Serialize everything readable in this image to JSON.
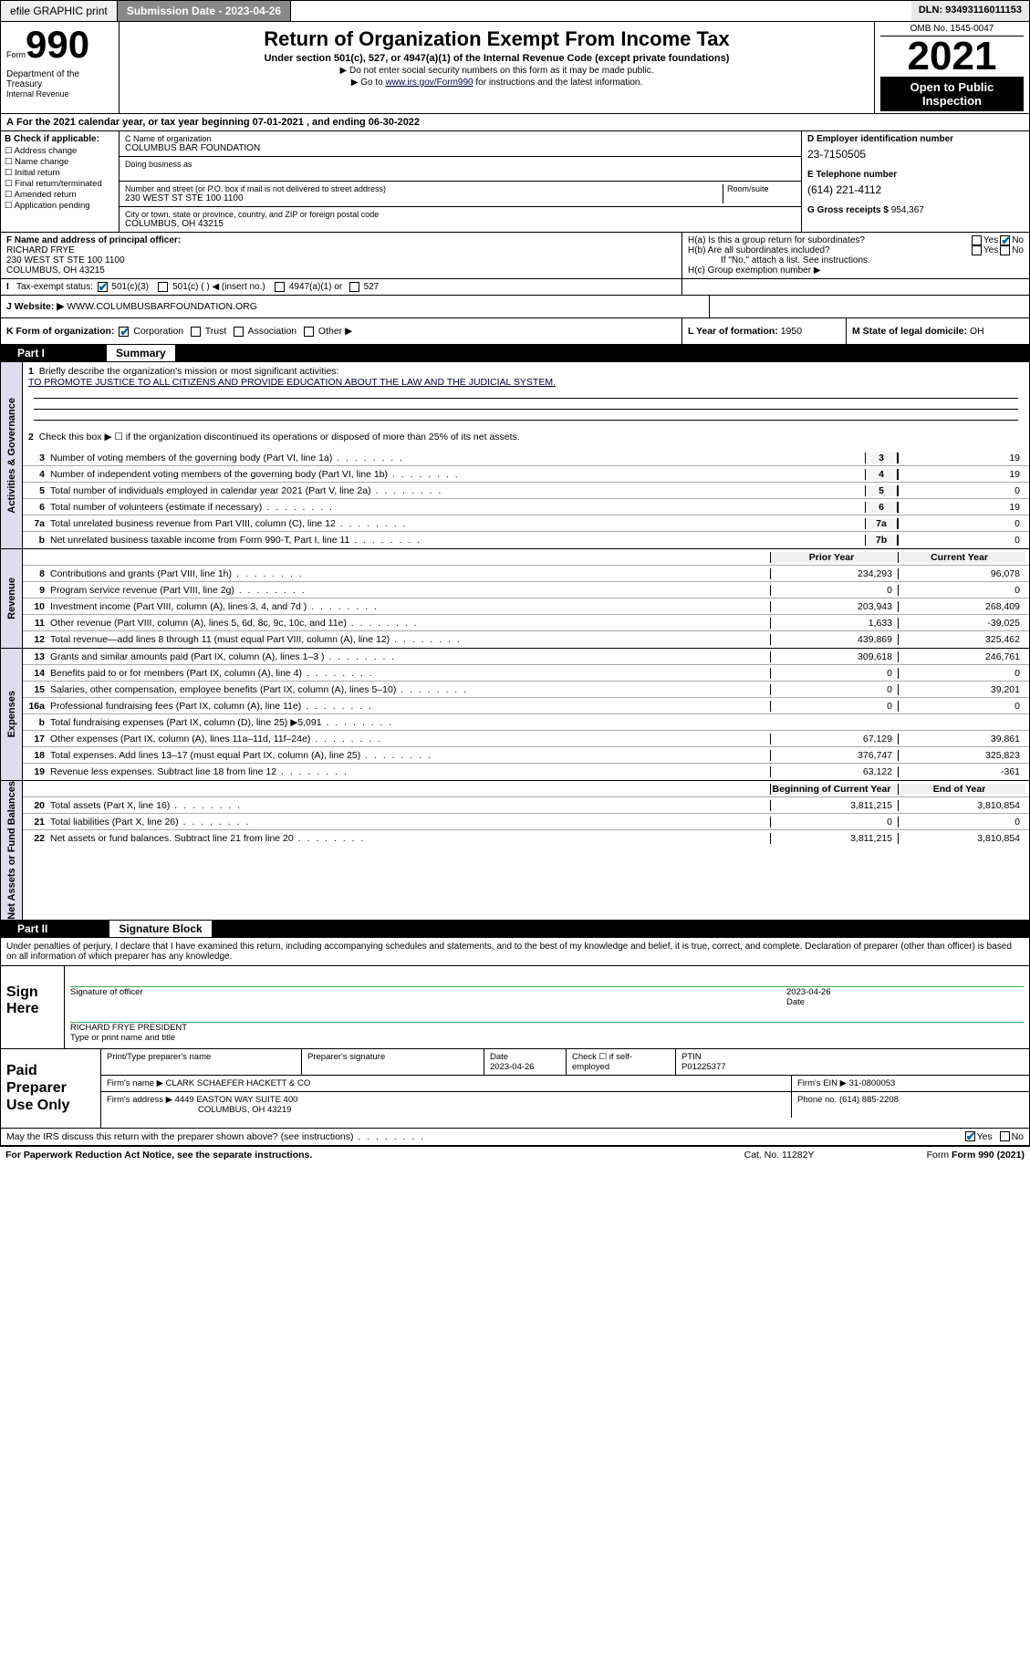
{
  "topbar": {
    "efile": "efile GRAPHIC print",
    "submission_label": "Submission Date - 2023-04-26",
    "dln_label": "DLN: 93493116011153"
  },
  "header": {
    "form_word": "Form",
    "form_no": "990",
    "dept": "Department of the Treasury",
    "irs": "Internal Revenue",
    "title": "Return of Organization Exempt From Income Tax",
    "subtitle": "Under section 501(c), 527, or 4947(a)(1) of the Internal Revenue Code (except private foundations)",
    "note1": "▶ Do not enter social security numbers on this form as it may be made public.",
    "note2_pre": "▶ Go to ",
    "note2_link": "www.irs.gov/Form990",
    "note2_post": " for instructions and the latest information.",
    "omb": "OMB No. 1545-0047",
    "year": "2021",
    "inspect1": "Open to Public",
    "inspect2": "Inspection"
  },
  "period": {
    "label": "For the 2021 calendar year, or tax year beginning 07-01-2021   , and ending 06-30-2022",
    "prefix_letter": "A"
  },
  "b": {
    "header": "B Check if applicable:",
    "items": [
      "Address change",
      "Name change",
      "Initial return",
      "Final return/terminated",
      "Amended return",
      "Application pending"
    ]
  },
  "c": {
    "name_lbl": "C Name of organization",
    "name": "COLUMBUS BAR FOUNDATION",
    "dba_lbl": "Doing business as",
    "street_lbl": "Number and street (or P.O. box if mail is not delivered to street address)",
    "room_lbl": "Room/suite",
    "street": "230 WEST ST STE 100 1100",
    "city_lbl": "City or town, state or province, country, and ZIP or foreign postal code",
    "city": "COLUMBUS, OH  43215"
  },
  "d": {
    "label": "D Employer identification number",
    "value": "23-7150505"
  },
  "e": {
    "label": "E Telephone number",
    "value": "(614) 221-4112"
  },
  "g": {
    "label": "G Gross receipts $ ",
    "value": "954,367"
  },
  "f": {
    "label": "F  Name and address of principal officer:",
    "name": "RICHARD FRYE",
    "addr1": "230 WEST ST STE 100 1100",
    "addr2": "COLUMBUS, OH  43215"
  },
  "h": {
    "a_label": "H(a)  Is this a group return for subordinates?",
    "b_label": "H(b)  Are all subordinates included?",
    "b_note": "If \"No,\" attach a list. See instructions.",
    "c_label": "H(c)  Group exemption number ▶",
    "yes": "Yes",
    "no": "No"
  },
  "i": {
    "label": "Tax-exempt status:",
    "opt1": "501(c)(3)",
    "opt2": "501(c) (  ) ◀ (insert no.)",
    "opt3": "4947(a)(1) or",
    "opt4": "527",
    "letter": "I"
  },
  "j": {
    "label": "J   Website: ▶",
    "value": "WWW.COLUMBUSBARFOUNDATION.ORG"
  },
  "k": {
    "label": "K Form of organization:",
    "corp": "Corporation",
    "trust": "Trust",
    "assoc": "Association",
    "other": "Other ▶"
  },
  "l": {
    "label": "L Year of formation: ",
    "value": "1950"
  },
  "m": {
    "label": "M State of legal domicile: ",
    "value": "OH"
  },
  "part1": {
    "label": "Part I",
    "title": "Summary",
    "q1": "Briefly describe the organization's mission or most significant activities:",
    "mission": "TO PROMOTE JUSTICE TO ALL CITIZENS AND PROVIDE EDUCATION ABOUT THE LAW AND THE JUDICIAL SYSTEM.",
    "q2": "Check this box ▶ ☐ if the organization discontinued its operations or disposed of more than 25% of its net assets.",
    "vtab_ag": "Activities & Governance",
    "vtab_rev": "Revenue",
    "vtab_exp": "Expenses",
    "vtab_na": "Net Assets or\nFund Balances",
    "lines_ag": [
      {
        "n": "3",
        "t": "Number of voting members of the governing body (Part VI, line 1a)",
        "box": "3",
        "v": "19"
      },
      {
        "n": "4",
        "t": "Number of independent voting members of the governing body (Part VI, line 1b)",
        "box": "4",
        "v": "19"
      },
      {
        "n": "5",
        "t": "Total number of individuals employed in calendar year 2021 (Part V, line 2a)",
        "box": "5",
        "v": "0"
      },
      {
        "n": "6",
        "t": "Total number of volunteers (estimate if necessary)",
        "box": "6",
        "v": "19"
      },
      {
        "n": "7a",
        "t": "Total unrelated business revenue from Part VIII, column (C), line 12",
        "box": "7a",
        "v": "0"
      },
      {
        "n": "b",
        "t": "Net unrelated business taxable income from Form 990-T, Part I, line 11",
        "box": "7b",
        "v": "0"
      }
    ],
    "col_prior": "Prior Year",
    "col_current": "Current Year",
    "lines_rev": [
      {
        "n": "8",
        "t": "Contributions and grants (Part VIII, line 1h)",
        "v1": "234,293",
        "v2": "96,078"
      },
      {
        "n": "9",
        "t": "Program service revenue (Part VIII, line 2g)",
        "v1": "0",
        "v2": "0"
      },
      {
        "n": "10",
        "t": "Investment income (Part VIII, column (A), lines 3, 4, and 7d )",
        "v1": "203,943",
        "v2": "268,409"
      },
      {
        "n": "11",
        "t": "Other revenue (Part VIII, column (A), lines 5, 6d, 8c, 9c, 10c, and 11e)",
        "v1": "1,633",
        "v2": "-39,025"
      },
      {
        "n": "12",
        "t": "Total revenue—add lines 8 through 11 (must equal Part VIII, column (A), line 12)",
        "v1": "439,869",
        "v2": "325,462"
      }
    ],
    "lines_exp": [
      {
        "n": "13",
        "t": "Grants and similar amounts paid (Part IX, column (A), lines 1–3 )",
        "v1": "309,618",
        "v2": "246,761"
      },
      {
        "n": "14",
        "t": "Benefits paid to or for members (Part IX, column (A), line 4)",
        "v1": "0",
        "v2": "0"
      },
      {
        "n": "15",
        "t": "Salaries, other compensation, employee benefits (Part IX, column (A), lines 5–10)",
        "v1": "0",
        "v2": "39,201"
      },
      {
        "n": "16a",
        "t": "Professional fundraising fees (Part IX, column (A), line 11e)",
        "v1": "0",
        "v2": "0"
      },
      {
        "n": "b",
        "t": "Total fundraising expenses (Part IX, column (D), line 25) ▶5,091",
        "shade": true
      },
      {
        "n": "17",
        "t": "Other expenses (Part IX, column (A), lines 11a–11d, 11f–24e)",
        "v1": "67,129",
        "v2": "39,861"
      },
      {
        "n": "18",
        "t": "Total expenses. Add lines 13–17 (must equal Part IX, column (A), line 25)",
        "v1": "376,747",
        "v2": "325,823"
      },
      {
        "n": "19",
        "t": "Revenue less expenses. Subtract line 18 from line 12",
        "v1": "63,122",
        "v2": "-361"
      }
    ],
    "col_begin": "Beginning of Current Year",
    "col_end": "End of Year",
    "lines_na": [
      {
        "n": "20",
        "t": "Total assets (Part X, line 16)",
        "v1": "3,811,215",
        "v2": "3,810,854"
      },
      {
        "n": "21",
        "t": "Total liabilities (Part X, line 26)",
        "v1": "0",
        "v2": "0"
      },
      {
        "n": "22",
        "t": "Net assets or fund balances. Subtract line 21 from line 20",
        "v1": "3,811,215",
        "v2": "3,810,854"
      }
    ]
  },
  "part2": {
    "label": "Part II",
    "title": "Signature Block",
    "declare": "Under penalties of perjury, I declare that I have examined this return, including accompanying schedules and statements, and to the best of my knowledge and belief, it is true, correct, and complete. Declaration of preparer (other than officer) is based on all information of which preparer has any knowledge.",
    "sign_here": "Sign Here",
    "sig_officer": "Signature of officer",
    "sig_date": "Date",
    "sig_date_val": "2023-04-26",
    "officer": "RICHARD FRYE  PRESIDENT",
    "type_name": "Type or print name and title",
    "paid": "Paid Preparer Use Only",
    "h_print": "Print/Type preparer's name",
    "h_sig": "Preparer's signature",
    "h_date": "Date",
    "h_date_val": "2023-04-26",
    "h_check": "Check ☐ if self-employed",
    "h_ptin": "PTIN",
    "ptin": "P01225377",
    "firm_lbl": "Firm's name    ▶",
    "firm": "CLARK SCHAEFER HACKETT & CO",
    "ein_lbl": "Firm's EIN ▶",
    "ein": "31-0800053",
    "addr_lbl": "Firm's address ▶",
    "addr1": "4449 EASTON WAY SUITE 400",
    "addr2": "COLUMBUS, OH  43219",
    "phone_lbl": "Phone no. ",
    "phone": "(614) 885-2208"
  },
  "footer": {
    "discuss": "May the IRS discuss this return with the preparer shown above? (see instructions)",
    "yes": "Yes",
    "no": "No",
    "paperwork": "For Paperwork Reduction Act Notice, see the separate instructions.",
    "cat": "Cat. No. 11282Y",
    "form": "Form 990 (2021)"
  },
  "colors": {
    "check_blue": "#0065a4",
    "link": "#004080",
    "vtab_bg": "#dde6ee"
  }
}
